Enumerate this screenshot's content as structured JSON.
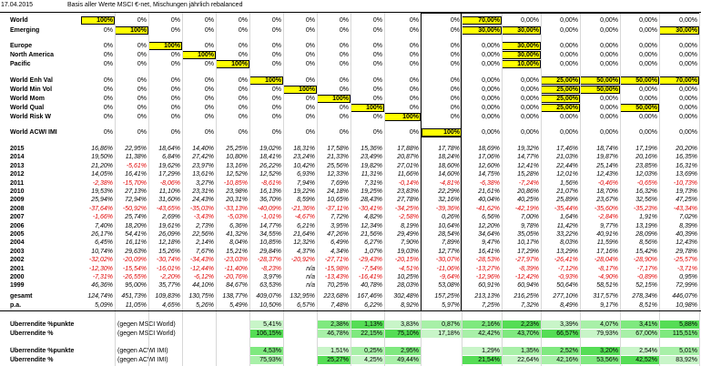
{
  "header": {
    "date": "17.04.2015",
    "note": "Basis aller Werte MSCI €-net, Mischungen jährlich rebalanced"
  },
  "alloc_rows": [
    {
      "label": "World",
      "cells": [
        "100%",
        "0%",
        "0%",
        "0%",
        "0%",
        "0%",
        "0%",
        "0%",
        "0%",
        "0%",
        "0%",
        "70,00%",
        "0,00%",
        "0,00%",
        "0,00%",
        "0,00%",
        "0,00%"
      ],
      "hl": [
        0,
        11
      ]
    },
    {
      "label": "Emerging",
      "cells": [
        "0%",
        "100%",
        "0%",
        "0%",
        "0%",
        "0%",
        "0%",
        "0%",
        "0%",
        "0%",
        "0%",
        "30,00%",
        "30,00%",
        "0,00%",
        "0,00%",
        "0,00%",
        "30,00%"
      ],
      "hl": [
        1,
        11,
        12,
        16
      ]
    },
    {
      "label": "Europe",
      "cells": [
        "0%",
        "0%",
        "100%",
        "0%",
        "0%",
        "0%",
        "0%",
        "0%",
        "0%",
        "0%",
        "0%",
        "0,00%",
        "30,00%",
        "0,00%",
        "0,00%",
        "0,00%",
        "0,00%"
      ],
      "hl": [
        2,
        12
      ]
    },
    {
      "label": "North America",
      "cells": [
        "0%",
        "0%",
        "0%",
        "100%",
        "0%",
        "0%",
        "0%",
        "0%",
        "0%",
        "0%",
        "0%",
        "0,00%",
        "30,00%",
        "0,00%",
        "0,00%",
        "0,00%",
        "0,00%"
      ],
      "hl": [
        3,
        12
      ]
    },
    {
      "label": "Pacific",
      "cells": [
        "0%",
        "0%",
        "0%",
        "0%",
        "100%",
        "0%",
        "0%",
        "0%",
        "0%",
        "0%",
        "0%",
        "0,00%",
        "10,00%",
        "0,00%",
        "0,00%",
        "0,00%",
        "0,00%"
      ],
      "hl": [
        4,
        12
      ]
    },
    {
      "label": "World Enh Val",
      "cells": [
        "0%",
        "0%",
        "0%",
        "0%",
        "0%",
        "100%",
        "0%",
        "0%",
        "0%",
        "0%",
        "0%",
        "0,00%",
        "0,00%",
        "25,00%",
        "50,00%",
        "50,00%",
        "70,00%"
      ],
      "hl": [
        5,
        13,
        14,
        15,
        16
      ]
    },
    {
      "label": "World Min Vol",
      "cells": [
        "0%",
        "0%",
        "0%",
        "0%",
        "0%",
        "0%",
        "100%",
        "0%",
        "0%",
        "0%",
        "0%",
        "0,00%",
        "0,00%",
        "25,00%",
        "50,00%",
        "0,00%",
        "0,00%"
      ],
      "hl": [
        6,
        13,
        14
      ]
    },
    {
      "label": "World Mom",
      "cells": [
        "0%",
        "0%",
        "0%",
        "0%",
        "0%",
        "0%",
        "0%",
        "100%",
        "0%",
        "0%",
        "0%",
        "0,00%",
        "0,00%",
        "25,00%",
        "0,00%",
        "0,00%",
        "0,00%"
      ],
      "hl": [
        7,
        13
      ]
    },
    {
      "label": "World Qual",
      "cells": [
        "0%",
        "0%",
        "0%",
        "0%",
        "0%",
        "0%",
        "0%",
        "0%",
        "100%",
        "0%",
        "0%",
        "0,00%",
        "0,00%",
        "25,00%",
        "0,00%",
        "50,00%",
        "0,00%"
      ],
      "hl": [
        8,
        13,
        15
      ]
    },
    {
      "label": "World Risk W",
      "cells": [
        "0%",
        "0%",
        "0%",
        "0%",
        "0%",
        "0%",
        "0%",
        "0%",
        "0%",
        "100%",
        "0%",
        "0,00%",
        "0,00%",
        "0,00%",
        "0,00%",
        "0,00%",
        "0,00%"
      ],
      "hl": [
        9
      ]
    },
    {
      "label": "World ACWI IMI",
      "cells": [
        "0%",
        "0%",
        "0%",
        "0%",
        "0%",
        "0%",
        "0%",
        "0%",
        "0%",
        "0%",
        "100%",
        "0,00%",
        "0,00%",
        "0,00%",
        "0,00%",
        "0,00%",
        "0,00%"
      ],
      "hl": [
        10
      ]
    }
  ],
  "year_rows": [
    {
      "label": "2015",
      "cells": [
        "16,86%",
        "22,95%",
        "18,64%",
        "14,40%",
        "25,25%",
        "19,02%",
        "18,31%",
        "17,58%",
        "15,36%",
        "17,88%",
        "17,78%",
        "18,69%",
        "19,32%",
        "17,46%",
        "18,74%",
        "17,19%",
        "20,20%"
      ]
    },
    {
      "label": "2014",
      "cells": [
        "19,50%",
        "11,38%",
        "6,84%",
        "27,42%",
        "10,80%",
        "18,41%",
        "23,24%",
        "21,33%",
        "23,49%",
        "20,87%",
        "18,24%",
        "17,06%",
        "14,77%",
        "21,03%",
        "19,87%",
        "20,16%",
        "16,35%"
      ]
    },
    {
      "label": "2013",
      "cells": [
        "21,20%",
        "-5,61%",
        "19,62%",
        "23,97%",
        "13,16%",
        "26,22%",
        "10,42%",
        "25,56%",
        "19,82%",
        "27,01%",
        "18,60%",
        "12,60%",
        "12,41%",
        "22,44%",
        "25,14%",
        "23,85%",
        "16,31%"
      ]
    },
    {
      "label": "2012",
      "cells": [
        "14,05%",
        "16,41%",
        "17,29%",
        "13,61%",
        "12,52%",
        "12,52%",
        "6,93%",
        "12,33%",
        "11,31%",
        "11,66%",
        "14,60%",
        "14,75%",
        "15,28%",
        "12,01%",
        "12,43%",
        "12,03%",
        "13,69%"
      ]
    },
    {
      "label": "2011",
      "cells": [
        "-2,38%",
        "-15,70%",
        "-8,06%",
        "3,27%",
        "-10,85%",
        "-8,61%",
        "7,94%",
        "7,69%",
        "7,31%",
        "-0,14%",
        "-4,81%",
        "-6,38%",
        "-7,24%",
        "1,56%",
        "-0,46%",
        "-0,65%",
        "-10,73%"
      ]
    },
    {
      "label": "2010",
      "cells": [
        "19,53%",
        "27,13%",
        "11,10%",
        "23,31%",
        "23,98%",
        "16,13%",
        "19,22%",
        "24,18%",
        "19,25%",
        "23,83%",
        "22,29%",
        "21,61%",
        "20,86%",
        "21,07%",
        "18,70%",
        "16,32%",
        "19,73%"
      ]
    },
    {
      "label": "2009",
      "cells": [
        "25,94%",
        "72,94%",
        "31,60%",
        "24,43%",
        "20,31%",
        "36,70%",
        "8,59%",
        "10,65%",
        "28,43%",
        "27,78%",
        "32,16%",
        "40,04%",
        "40,25%",
        "25,89%",
        "23,67%",
        "32,56%",
        "47,25%"
      ]
    },
    {
      "label": "2008",
      "cells": [
        "-37,64%",
        "-50,92%",
        "-43,65%",
        "-35,03%",
        "-33,13%",
        "-40,09%",
        "-21,36%",
        "-37,11%",
        "-30,41%",
        "-34,25%",
        "-39,36%",
        "-41,62%",
        "-42,19%",
        "-35,44%",
        "-35,60%",
        "-35,23%",
        "-43,34%"
      ]
    },
    {
      "label": "2007",
      "cells": [
        "-1,66%",
        "25,74%",
        "2,69%",
        "-3,43%",
        "-5,03%",
        "-1,01%",
        "-4,67%",
        "7,72%",
        "4,82%",
        "-2,58%",
        "0,26%",
        "6,56%",
        "7,00%",
        "1,64%",
        "-2,84%",
        "1,91%",
        "7,02%"
      ]
    },
    {
      "label": "2006",
      "cells": [
        "7,40%",
        "18,20%",
        "19,61%",
        "2,73%",
        "6,36%",
        "14,77%",
        "6,21%",
        "3,95%",
        "12,34%",
        "8,19%",
        "10,64%",
        "12,20%",
        "9,78%",
        "11,42%",
        "9,77%",
        "13,19%",
        "8,39%"
      ]
    },
    {
      "label": "2005",
      "cells": [
        "26,17%",
        "54,41%",
        "26,09%",
        "22,56%",
        "41,32%",
        "34,55%",
        "21,64%",
        "47,26%",
        "21,56%",
        "29,49%",
        "28,54%",
        "34,64%",
        "35,05%",
        "33,22%",
        "40,91%",
        "28,09%",
        "40,39%"
      ]
    },
    {
      "label": "2004",
      "cells": [
        "6,45%",
        "16,11%",
        "12,18%",
        "2,14%",
        "8,04%",
        "10,85%",
        "12,32%",
        "6,49%",
        "6,27%",
        "7,90%",
        "7,89%",
        "9,47%",
        "10,17%",
        "8,03%",
        "11,59%",
        "8,56%",
        "12,43%"
      ]
    },
    {
      "label": "2003",
      "cells": [
        "10,74%",
        "29,63%",
        "15,26%",
        "7,67%",
        "15,21%",
        "29,84%",
        "4,37%",
        "4,34%",
        "1,07%",
        "19,03%",
        "12,77%",
        "16,41%",
        "17,29%",
        "13,29%",
        "17,16%",
        "15,42%",
        "29,78%"
      ]
    },
    {
      "label": "2002",
      "cells": [
        "-32,02%",
        "-20,09%",
        "-30,74%",
        "-34,43%",
        "-23,03%",
        "-28,37%",
        "-20,92%",
        "-27,71%",
        "-29,43%",
        "-20,15%",
        "-30,07%",
        "-28,53%",
        "-27,97%",
        "-26,41%",
        "-28,04%",
        "-28,90%",
        "-25,57%"
      ]
    },
    {
      "label": "2001",
      "cells": [
        "-12,30%",
        "-15,54%",
        "-16,01%",
        "-12,44%",
        "-11,40%",
        "-8,23%",
        "n/a",
        "-15,98%",
        "-7,54%",
        "-4,51%",
        "-11,06%",
        "-13,27%",
        "-8,39%",
        "-7,12%",
        "-8,17%",
        "-7,17%",
        "-3,71%"
      ]
    },
    {
      "label": "2000",
      "cells": [
        "-7,31%",
        "-26,55%",
        "-2,20%",
        "-6,12%",
        "-20,76%",
        "3,97%",
        "n/a",
        "-13,43%",
        "-16,41%",
        "10,25%",
        "-9,64%",
        "-12,96%",
        "-12,42%",
        "-0,93%",
        "-4,90%",
        "-0,89%",
        "0,95%"
      ]
    },
    {
      "label": "1999",
      "cells": [
        "46,36%",
        "95,00%",
        "35,77%",
        "44,10%",
        "84,67%",
        "63,53%",
        "n/a",
        "70,25%",
        "40,78%",
        "28,03%",
        "53,08%",
        "60,91%",
        "60,94%",
        "50,64%",
        "58,51%",
        "52,15%",
        "72,99%"
      ]
    }
  ],
  "gesamt": {
    "label": "gesamt",
    "cells": [
      "124,74%",
      "451,73%",
      "109,83%",
      "130,75%",
      "138,77%",
      "409,07%",
      "132,95%",
      "223,68%",
      "167,46%",
      "302,48%",
      "157,25%",
      "213,13%",
      "216,25%",
      "277,10%",
      "317,57%",
      "278,34%",
      "446,07%"
    ]
  },
  "pa": {
    "label": "p.a.",
    "cells": [
      "5,09%",
      "11,05%",
      "4,65%",
      "5,26%",
      "5,49%",
      "10,50%",
      "6,57%",
      "7,48%",
      "6,22%",
      "8,92%",
      "5,97%",
      "7,25%",
      "7,32%",
      "8,49%",
      "9,17%",
      "8,51%",
      "10,98%"
    ]
  },
  "ueber_rows": [
    {
      "label": "Überrendite %punkte",
      "ref": "(gegen MSCI World)",
      "cells": [
        "",
        "",
        "",
        "",
        "",
        "5,41%",
        "",
        "2,38%",
        "1,13%",
        "3,83%",
        "0,87%",
        "2,16%",
        "2,23%",
        "3,39%",
        "4,07%",
        "3,41%",
        "5,88%"
      ]
    },
    {
      "label": "Überrendite %",
      "ref": "(gegen MSCI World)",
      "cells": [
        "",
        "",
        "",
        "",
        "",
        "106,15%",
        "",
        "46,78%",
        "22,15%",
        "75,10%",
        "17,18%",
        "42,42%",
        "43,70%",
        "66,57%",
        "79,93%",
        "67,00%",
        "115,51%"
      ]
    },
    {
      "label": "Überrendite %punkte",
      "ref": "(gegen ACWI IMI)",
      "cells": [
        "",
        "",
        "",
        "",
        "",
        "4,53%",
        "",
        "1,51%",
        "0,25%",
        "2,95%",
        "",
        "1,29%",
        "1,35%",
        "2,52%",
        "3,20%",
        "2,54%",
        "5,01%"
      ]
    },
    {
      "label": "Überrendite %",
      "ref": "(gegen ACWI IMI)",
      "cells": [
        "",
        "",
        "",
        "",
        "",
        "75,93%",
        "",
        "25,27%",
        "4,25%",
        "49,44%",
        "",
        "21,54%",
        "22,64%",
        "42,16%",
        "53,56%",
        "42,52%",
        "83,92%"
      ]
    }
  ],
  "colors": {
    "highlight": "#ffff00",
    "negative": "#e00000",
    "green": "#55dd55"
  }
}
